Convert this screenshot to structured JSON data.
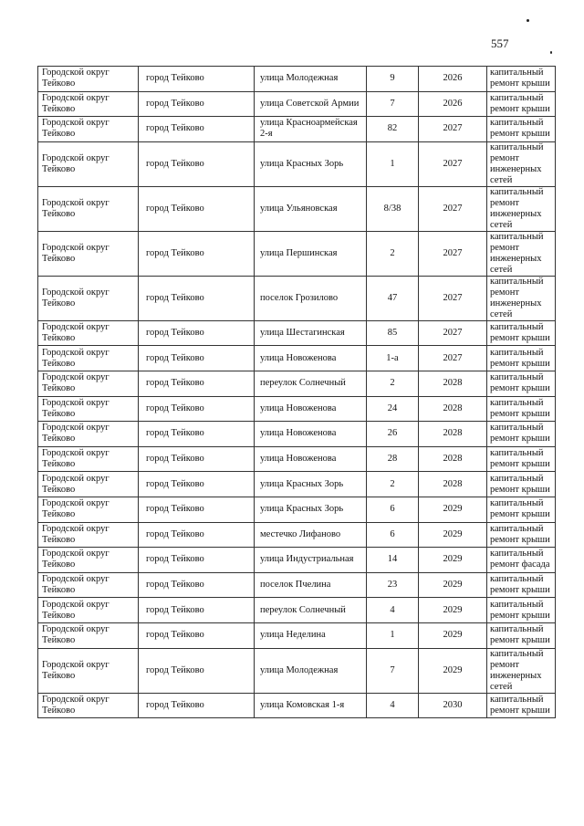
{
  "page_number": "557",
  "rows": [
    {
      "district": "Городской округ Тейково",
      "city": "город Тейково",
      "street": "улица Молодежная",
      "house": "9",
      "year": "2026",
      "work": "капитальный ремонт крыши",
      "tall": false
    },
    {
      "district": "Городской округ Тейково",
      "city": "город Тейково",
      "street": "улица Советской Армии",
      "house": "7",
      "year": "2026",
      "work": "капитальный ремонт крыши",
      "tall": false
    },
    {
      "district": "Городской округ Тейково",
      "city": "город Тейково",
      "street": "улица Красноармейская 2-я",
      "house": "82",
      "year": "2027",
      "work": "капитальный ремонт крыши",
      "tall": false
    },
    {
      "district": "Городской округ Тейково",
      "city": "город Тейково",
      "street": "улица Красных Зорь",
      "house": "1",
      "year": "2027",
      "work": "капитальный ремонт инженерных сетей",
      "tall": true
    },
    {
      "district": "Городской округ Тейково",
      "city": "город Тейково",
      "street": "улица Ульяновская",
      "house": "8/38",
      "year": "2027",
      "work": "капитальный ремонт инженерных сетей",
      "tall": true
    },
    {
      "district": "Городской округ Тейково",
      "city": "город Тейково",
      "street": "улица Першинская",
      "house": "2",
      "year": "2027",
      "work": "капитальный ремонт инженерных сетей",
      "tall": true
    },
    {
      "district": "Городской округ Тейково",
      "city": "город Тейково",
      "street": "поселок Грозилово",
      "house": "47",
      "year": "2027",
      "work": "капитальный ремонт инженерных сетей",
      "tall": true
    },
    {
      "district": "Городской округ Тейково",
      "city": "город Тейково",
      "street": "улица Шестагинская",
      "house": "85",
      "year": "2027",
      "work": "капитальный ремонт крыши",
      "tall": false
    },
    {
      "district": "Городской округ Тейково",
      "city": "город Тейково",
      "street": "улица Новоженова",
      "house": "1-а",
      "year": "2027",
      "work": "капитальный ремонт крыши",
      "tall": false
    },
    {
      "district": "Городской округ Тейково",
      "city": "город Тейково",
      "street": "переулок Солнечный",
      "house": "2",
      "year": "2028",
      "work": "капитальный ремонт крыши",
      "tall": false
    },
    {
      "district": "Городской округ Тейково",
      "city": "город Тейково",
      "street": "улица Новоженова",
      "house": "24",
      "year": "2028",
      "work": "капитальный ремонт крыши",
      "tall": false
    },
    {
      "district": "Городской округ Тейково",
      "city": "город Тейково",
      "street": "улица Новоженова",
      "house": "26",
      "year": "2028",
      "work": "капитальный ремонт крыши",
      "tall": false
    },
    {
      "district": "Городской округ Тейково",
      "city": "город Тейково",
      "street": "улица Новоженова",
      "house": "28",
      "year": "2028",
      "work": "капитальный ремонт крыши",
      "tall": false
    },
    {
      "district": "Городской округ Тейково",
      "city": "город Тейково",
      "street": "улица Красных Зорь",
      "house": "2",
      "year": "2028",
      "work": "капитальный ремонт крыши",
      "tall": false
    },
    {
      "district": "Городской округ Тейково",
      "city": "город Тейково",
      "street": "улица Красных Зорь",
      "house": "6",
      "year": "2029",
      "work": "капитальный ремонт крыши",
      "tall": false
    },
    {
      "district": "Городской округ Тейково",
      "city": "город Тейково",
      "street": "местечко Лифаново",
      "house": "6",
      "year": "2029",
      "work": "капитальный ремонт крыши",
      "tall": false
    },
    {
      "district": "Городской округ Тейково",
      "city": "город Тейково",
      "street": "улица Индустриальная",
      "house": "14",
      "year": "2029",
      "work": "капитальный ремонт фасада",
      "tall": false
    },
    {
      "district": "Городской округ Тейково",
      "city": "город Тейково",
      "street": "поселок Пчелина",
      "house": "23",
      "year": "2029",
      "work": "капитальный ремонт крыши",
      "tall": false
    },
    {
      "district": "Городской округ Тейково",
      "city": "город Тейково",
      "street": "переулок Солнечный",
      "house": "4",
      "year": "2029",
      "work": "капитальный ремонт крыши",
      "tall": false
    },
    {
      "district": "Городской округ Тейково",
      "city": "город Тейково",
      "street": "улица Неделина",
      "house": "1",
      "year": "2029",
      "work": "капитальный ремонт крыши",
      "tall": false
    },
    {
      "district": "Городской округ Тейково",
      "city": "город Тейково",
      "street": "улица Молодежная",
      "house": "7",
      "year": "2029",
      "work": "капитальный ремонт инженерных сетей",
      "tall": true
    },
    {
      "district": "Городской округ Тейково",
      "city": "город Тейково",
      "street": "улица Комовская 1-я",
      "house": "4",
      "year": "2030",
      "work": "капитальный ремонт крыши",
      "tall": false
    }
  ]
}
